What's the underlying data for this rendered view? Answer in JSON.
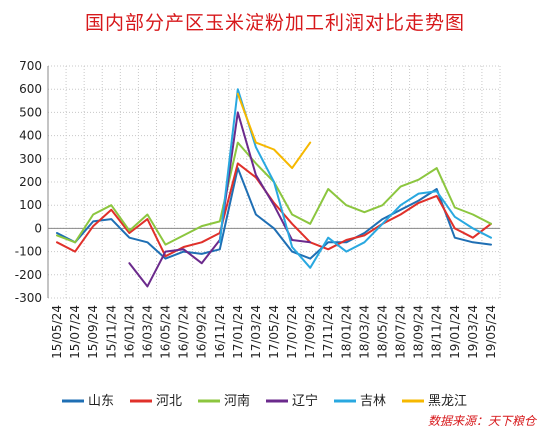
{
  "chart_data": {
    "type": "line",
    "title": "国内部分产区玉米淀粉加工利润对比走势图",
    "source": "数据来源：天下粮仓",
    "xlabel": "",
    "ylabel": "",
    "ylim": [
      -300,
      700
    ],
    "yticks": [
      700,
      600,
      500,
      400,
      300,
      200,
      100,
      0,
      -100,
      -200,
      -300
    ],
    "xticks": [
      "15/05/24",
      "15/07/24",
      "15/09/24",
      "15/11/24",
      "16/01/24",
      "16/03/24",
      "16/05/24",
      "16/07/24",
      "16/09/24",
      "16/11/24",
      "17/01/24",
      "17/03/24",
      "17/05/24",
      "17/07/24",
      "17/09/24",
      "17/11/24",
      "18/01/24",
      "18/03/24",
      "18/05/24",
      "18/07/24",
      "18/09/24",
      "18/11/24",
      "19/01/24",
      "19/03/24",
      "19/05/24"
    ],
    "grid": true,
    "legend_position": "bottom",
    "x": [
      0,
      1,
      2,
      3,
      4,
      5,
      6,
      7,
      8,
      9,
      10,
      11,
      12,
      13,
      14,
      15,
      16,
      17,
      18,
      19,
      20,
      21,
      22,
      23,
      24
    ],
    "series": [
      {
        "name": "山东",
        "color": "#1f6fb4",
        "values": [
          -20,
          -60,
          30,
          40,
          -40,
          -60,
          -130,
          -100,
          -110,
          -90,
          260,
          60,
          0,
          -100,
          -130,
          -60,
          -60,
          -20,
          40,
          80,
          120,
          170,
          -40,
          -60,
          -70
        ]
      },
      {
        "name": "河北",
        "color": "#e0302a",
        "values": [
          -60,
          -100,
          10,
          80,
          -20,
          40,
          -120,
          -80,
          -60,
          -20,
          280,
          220,
          110,
          20,
          -60,
          -90,
          -50,
          -30,
          20,
          60,
          110,
          140,
          0,
          -40,
          20
        ]
      },
      {
        "name": "河南",
        "color": "#8cc63f",
        "values": [
          -30,
          -60,
          60,
          100,
          -10,
          60,
          -70,
          -30,
          10,
          30,
          370,
          280,
          200,
          60,
          20,
          170,
          100,
          70,
          100,
          180,
          210,
          260,
          90,
          60,
          20
        ]
      },
      {
        "name": "辽宁",
        "color": "#6b2a8c",
        "values": [
          null,
          null,
          null,
          null,
          -150,
          -250,
          -100,
          -90,
          -150,
          -50,
          500,
          230,
          100,
          -50,
          -60,
          null,
          null,
          null,
          null,
          null,
          null,
          null,
          null,
          null,
          null
        ]
      },
      {
        "name": "吉林",
        "color": "#29a8e0",
        "values": [
          null,
          null,
          null,
          null,
          null,
          null,
          null,
          null,
          null,
          -60,
          600,
          350,
          200,
          -80,
          -170,
          -40,
          -100,
          -60,
          20,
          100,
          150,
          160,
          50,
          0,
          -40
        ]
      },
      {
        "name": "黑龙江",
        "color": "#f6b800",
        "values": [
          null,
          null,
          null,
          null,
          null,
          null,
          null,
          null,
          null,
          null,
          580,
          370,
          340,
          260,
          370,
          null,
          null,
          null,
          null,
          null,
          null,
          null,
          null,
          null,
          null
        ]
      }
    ]
  }
}
